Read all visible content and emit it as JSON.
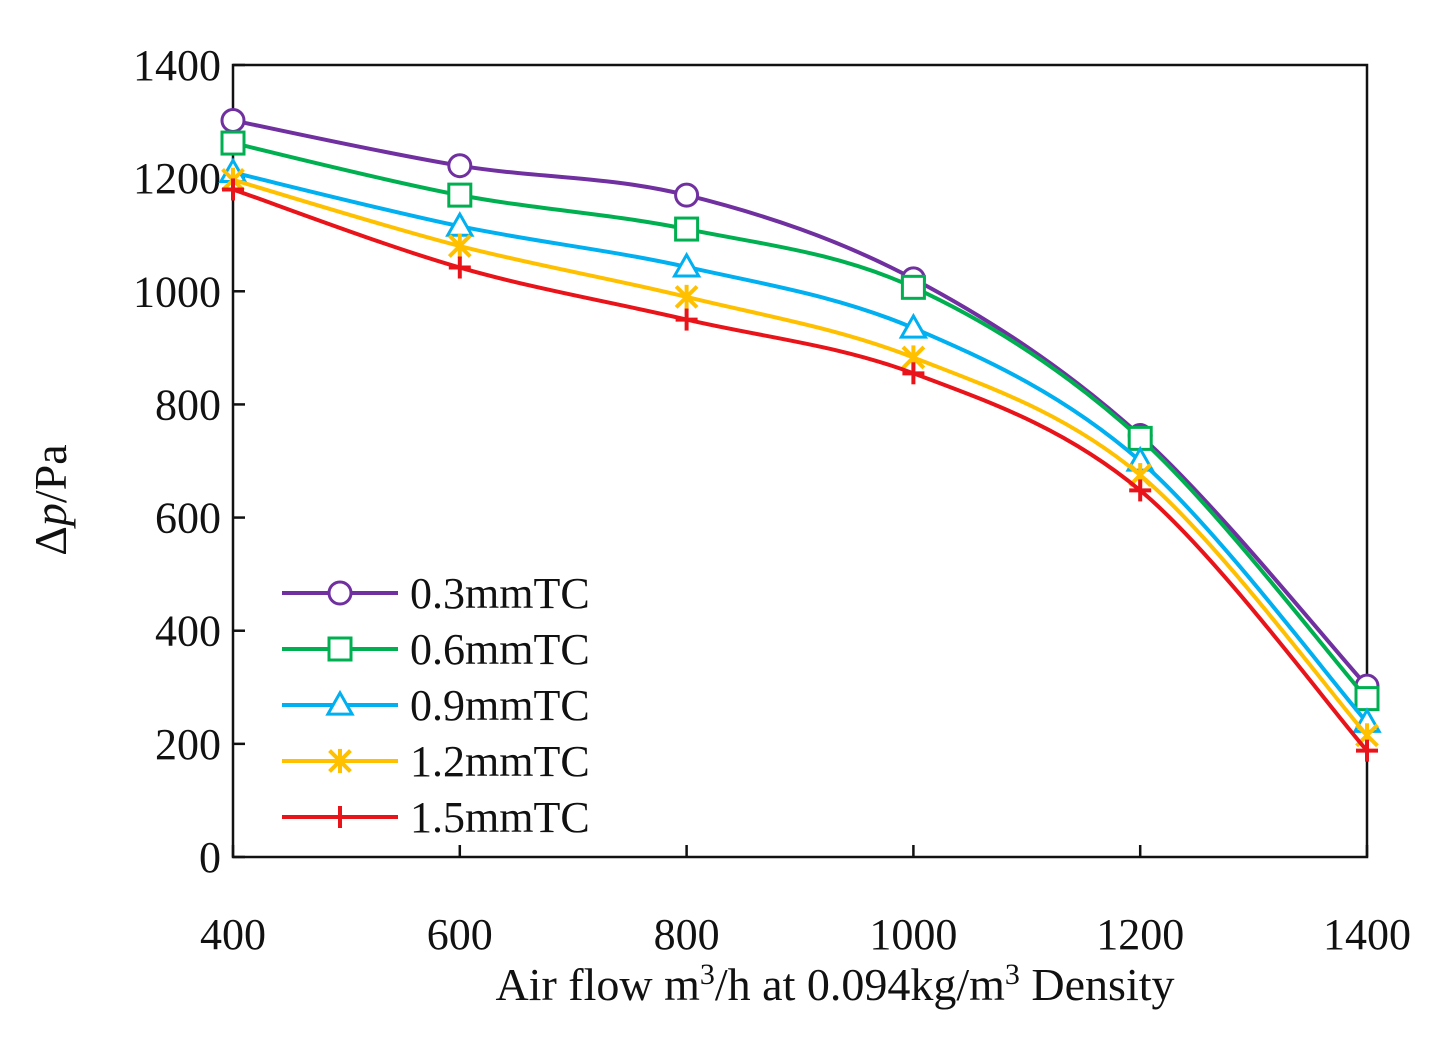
{
  "chart_data": {
    "type": "line",
    "title": "",
    "xlabel": "Air flow   m³/h at 0.094kg/m³ Density",
    "xlabel_parts": {
      "p1": "Air flow   m",
      "sup1": "3",
      "p2": "/h at 0.094kg/m",
      "sup2": "3",
      "p3": " Density"
    },
    "ylabel": "Δp/Pa",
    "ylabel_parts": {
      "delta": "Δ",
      "p": "p",
      "rest": "/Pa"
    },
    "xlim": [
      400,
      1400
    ],
    "ylim": [
      0,
      1400
    ],
    "x_ticks": [
      400,
      600,
      800,
      1000,
      1200,
      1400
    ],
    "y_ticks": [
      0,
      200,
      400,
      600,
      800,
      1000,
      1200,
      1400
    ],
    "x": [
      400,
      600,
      800,
      1000,
      1200,
      1400
    ],
    "grid": false,
    "legend_position": "bottom-left",
    "series": [
      {
        "name": "0.3mmTC",
        "marker": "circle",
        "color": "#7030A0",
        "values": [
          1302,
          1222,
          1170,
          1022,
          745,
          302
        ]
      },
      {
        "name": "0.6mmTC",
        "marker": "square",
        "color": "#00B050",
        "values": [
          1262,
          1170,
          1110,
          1007,
          740,
          280
        ]
      },
      {
        "name": "0.9mmTC",
        "marker": "triangle",
        "color": "#00B0F0",
        "values": [
          1210,
          1115,
          1043,
          935,
          700,
          238
        ]
      },
      {
        "name": "1.2mmTC",
        "marker": "asterisk",
        "color": "#FFC000",
        "values": [
          1197,
          1080,
          990,
          883,
          675,
          215
        ]
      },
      {
        "name": "1.5mmTC",
        "marker": "plus",
        "color": "#E8141A",
        "values": [
          1180,
          1042,
          950,
          855,
          648,
          188
        ]
      }
    ]
  }
}
